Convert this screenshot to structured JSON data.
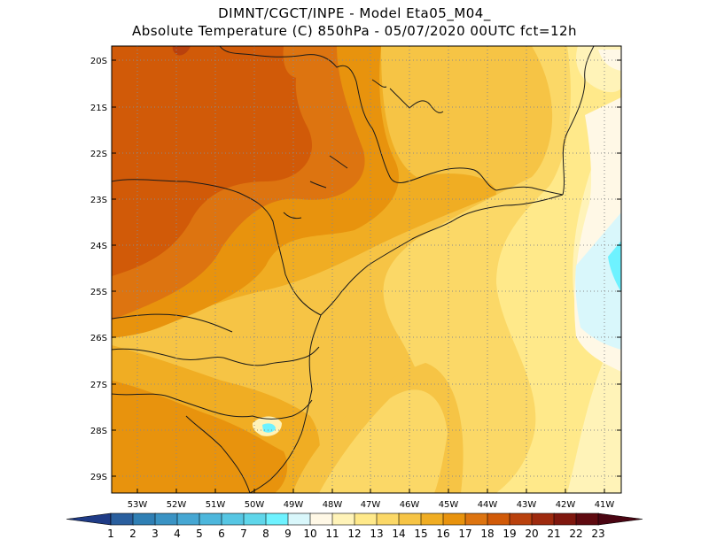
{
  "header": {
    "line1": "DIMNT/CGCT/INPE -  Model Eta05_M04_",
    "line2": "Absolute Temperature (C) 850hPa -  05/07/2020 00UTC fct=12h"
  },
  "axes": {
    "lat_labels": [
      "20S",
      "21S",
      "22S",
      "23S",
      "24S",
      "25S",
      "26S",
      "27S",
      "28S",
      "29S"
    ],
    "lon_labels": [
      "53W",
      "52W",
      "51W",
      "50W",
      "49W",
      "48W",
      "47W",
      "46W",
      "45W",
      "44W",
      "43W",
      "42W",
      "41W"
    ]
  },
  "colorbar": {
    "values": [
      "1",
      "2",
      "3",
      "4",
      "5",
      "6",
      "7",
      "8",
      "9",
      "10",
      "11",
      "12",
      "13",
      "14",
      "15",
      "16",
      "17",
      "18",
      "19",
      "20",
      "21",
      "22",
      "23"
    ],
    "colors": [
      "#1f3b86",
      "#2a5f9e",
      "#2f7fb4",
      "#3a93c4",
      "#46a7d3",
      "#4db7dc",
      "#56c6e3",
      "#5fd6ea",
      "#6ef2ff",
      "#d9f7fb",
      "#fff8e6",
      "#fff3b8",
      "#ffe98a",
      "#fbd867",
      "#f6c445",
      "#f0ad23",
      "#e8930d",
      "#dd7410",
      "#d15a08",
      "#b9410d",
      "#9e2a0e",
      "#7f170e",
      "#5f0a10",
      "#4a0512"
    ]
  },
  "palette": {
    "frame": "#000000",
    "grid": "#8a8a8a",
    "coast": "#1a1a1a",
    "ocean_light": "#fff0b0"
  }
}
